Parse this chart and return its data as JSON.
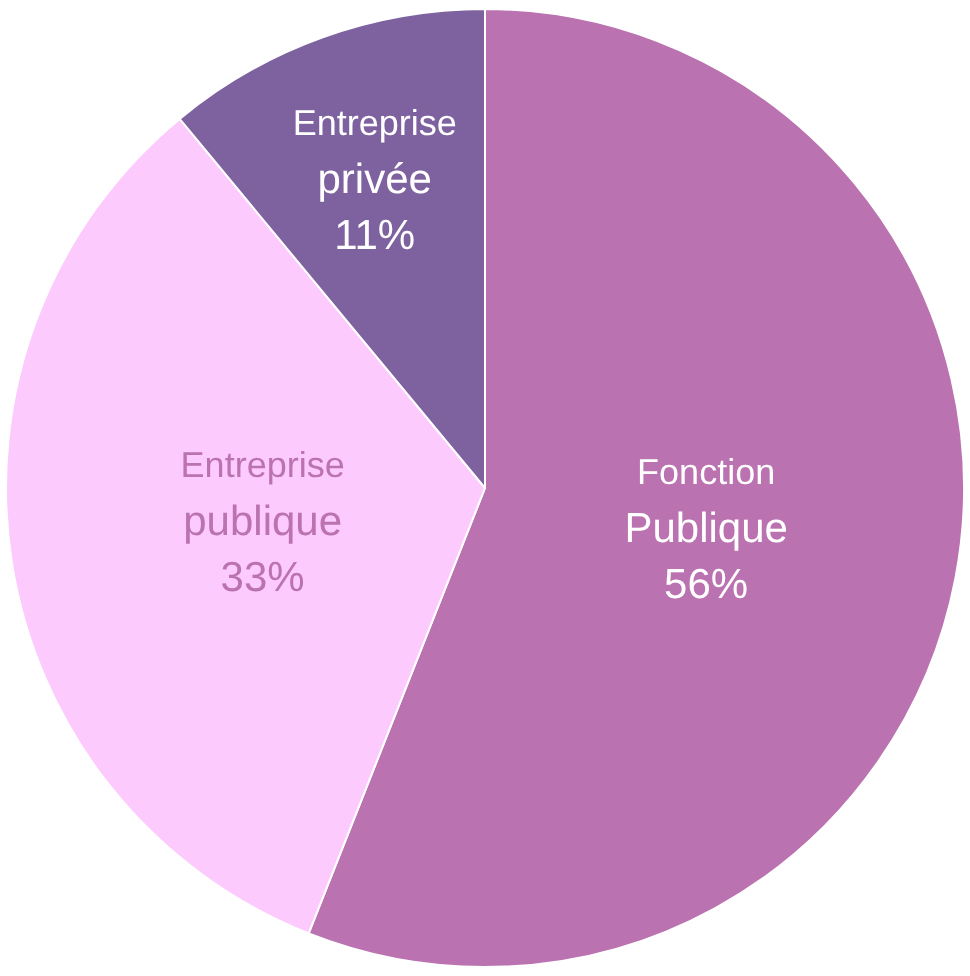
{
  "chart_data": {
    "type": "pie",
    "categories": [
      "Fonction Publique",
      "Entreprise publique",
      "Entreprise privée"
    ],
    "values": [
      56,
      33,
      11
    ],
    "colors": [
      "#bb72b0",
      "#fdcafd",
      "#7e62a0"
    ],
    "value_labels": [
      "56%",
      "33%",
      "11%"
    ],
    "legend": false
  }
}
